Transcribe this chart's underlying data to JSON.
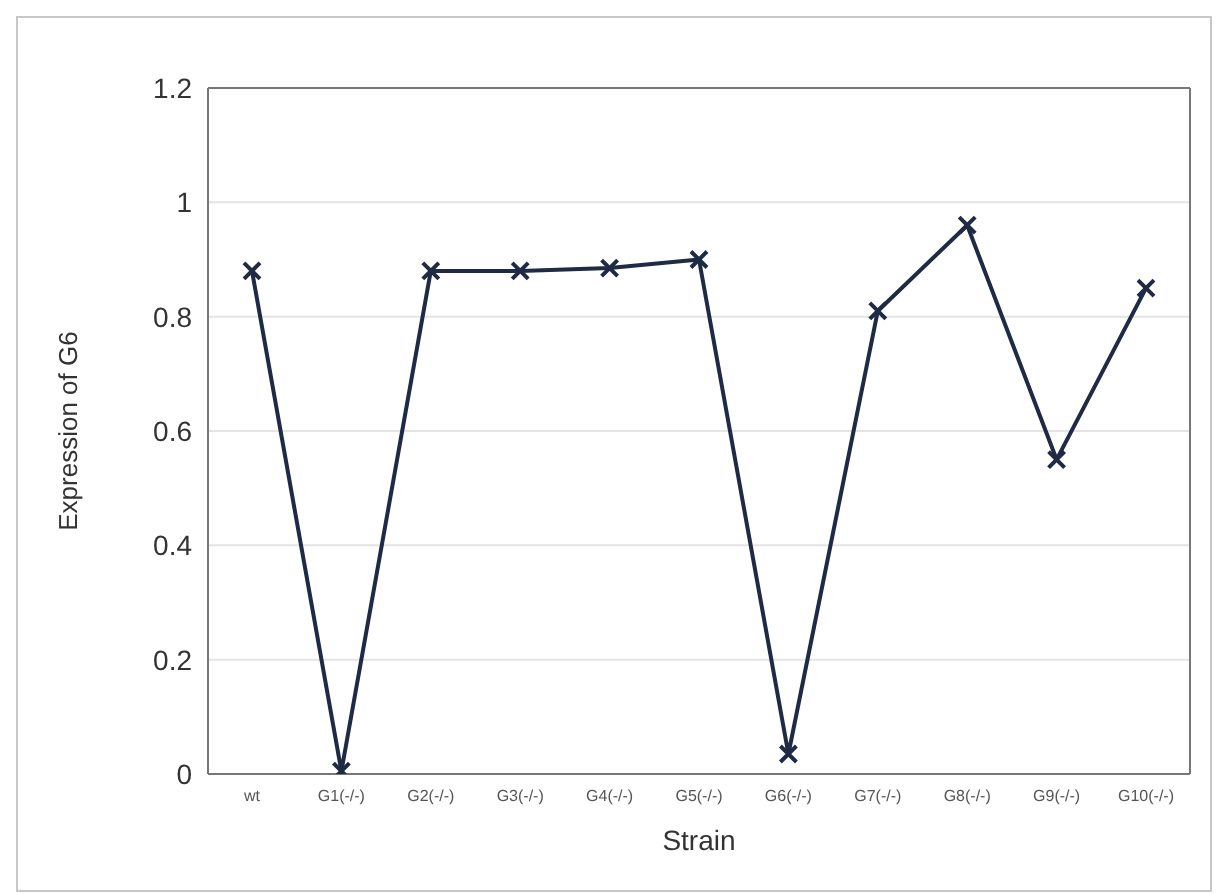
{
  "chart_data": {
    "type": "line",
    "xlabel": "Strain",
    "ylabel": "Expression of G6",
    "categories": [
      "wt",
      "G1(-/-)",
      "G2(-/-)",
      "G3(-/-)",
      "G4(-/-)",
      "G5(-/-)",
      "G6(-/-)",
      "G7(-/-)",
      "G8(-/-)",
      "G9(-/-)",
      "G10(-/-)"
    ],
    "series": [
      {
        "color": "#1f2a44",
        "values": [
          0.88,
          0.005,
          0.88,
          0.88,
          0.885,
          0.9,
          0.035,
          0.81,
          0.96,
          0.55,
          0.85
        ]
      }
    ],
    "ylim": [
      0,
      1.2
    ],
    "yticks": [
      0,
      0.2,
      0.4,
      0.6,
      0.8,
      {
        "value": 1,
        "label": "1"
      },
      1.2
    ],
    "grid": "y",
    "marker": "cross"
  }
}
